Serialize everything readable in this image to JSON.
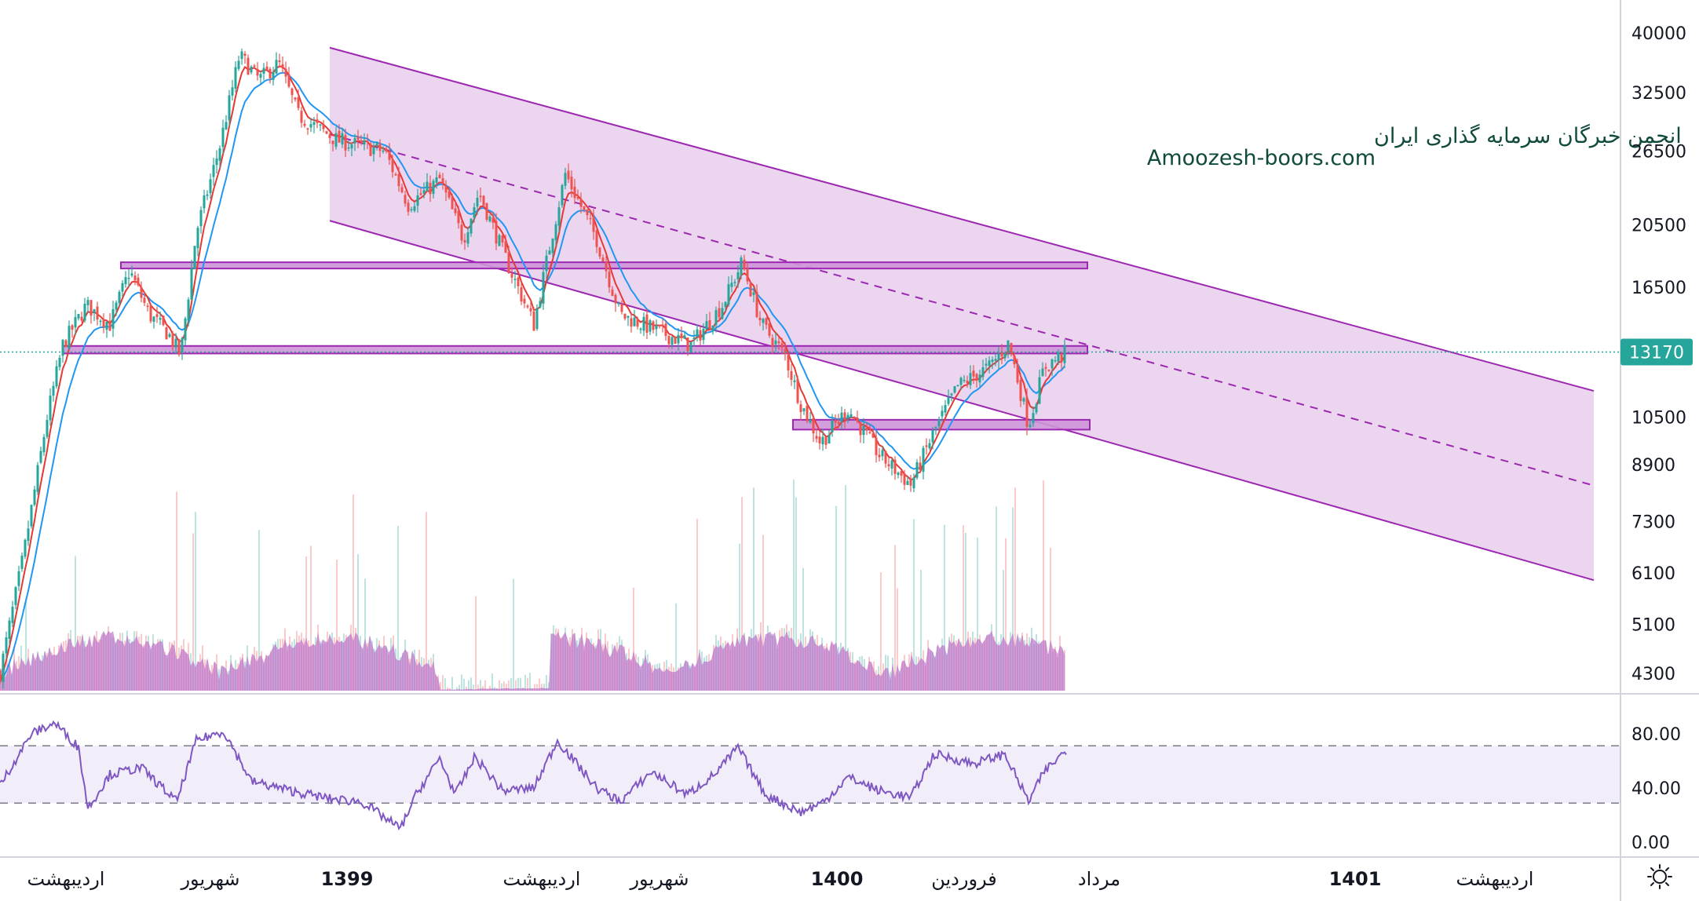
{
  "watermark": {
    "line1": "انجمن خبرگان سرمایه گذاری ایران",
    "line2": "Amoozesh-boors.com"
  },
  "price_badge": "13170",
  "colors": {
    "up": "#26a69a",
    "down": "#ef5350",
    "channel": "#9c27b0",
    "channel_fill": "#e1bee7",
    "ema_fast": "#e53935",
    "ema_slow": "#2196f3",
    "rsi": "#7e57c2",
    "volume_area": "#ba68c8",
    "badge": "#26a69a"
  },
  "settings_icon": "sun-gear-icon",
  "chart_data": [
    {
      "type": "candlestick",
      "scale": "log",
      "y_ticks": [
        "40000",
        "32500",
        "26500",
        "20500",
        "16500",
        "13170",
        "10500",
        "8900",
        "7300",
        "6100",
        "5100",
        "4300"
      ],
      "y_tick_values": [
        40000,
        32500,
        26500,
        20500,
        16500,
        13170,
        10500,
        8900,
        7300,
        6100,
        5100,
        4300
      ],
      "x_labels": [
        "اردیبهشت",
        "شهریور",
        "1399",
        "اردیبهشت",
        "شهریور",
        "1400",
        "فروردین",
        "مرداد",
        "1401",
        "اردیبهشت"
      ],
      "bold_labels": [
        "1399",
        "1400",
        "1401"
      ],
      "last_price": 13170,
      "approx_path": [
        {
          "t": 0,
          "p": 4300
        },
        {
          "t": 30,
          "p": 6500
        },
        {
          "t": 60,
          "p": 10500
        },
        {
          "t": 80,
          "p": 13500
        },
        {
          "t": 110,
          "p": 15500
        },
        {
          "t": 140,
          "p": 14500
        },
        {
          "t": 165,
          "p": 17500
        },
        {
          "t": 190,
          "p": 15000
        },
        {
          "t": 215,
          "p": 14000
        },
        {
          "t": 230,
          "p": 13000
        },
        {
          "t": 250,
          "p": 20000
        },
        {
          "t": 280,
          "p": 27000
        },
        {
          "t": 305,
          "p": 37000
        },
        {
          "t": 330,
          "p": 34000
        },
        {
          "t": 355,
          "p": 36000
        },
        {
          "t": 380,
          "p": 30000
        },
        {
          "t": 430,
          "p": 27500
        },
        {
          "t": 490,
          "p": 26500
        },
        {
          "t": 520,
          "p": 22000
        },
        {
          "t": 560,
          "p": 24000
        },
        {
          "t": 590,
          "p": 19500
        },
        {
          "t": 610,
          "p": 23000
        },
        {
          "t": 650,
          "p": 17500
        },
        {
          "t": 680,
          "p": 14500
        },
        {
          "t": 700,
          "p": 19000
        },
        {
          "t": 720,
          "p": 24500
        },
        {
          "t": 760,
          "p": 19500
        },
        {
          "t": 790,
          "p": 15000
        },
        {
          "t": 830,
          "p": 14300
        },
        {
          "t": 880,
          "p": 13500
        },
        {
          "t": 920,
          "p": 15500
        },
        {
          "t": 945,
          "p": 18000
        },
        {
          "t": 970,
          "p": 14500
        },
        {
          "t": 1000,
          "p": 13000
        },
        {
          "t": 1020,
          "p": 11000
        },
        {
          "t": 1045,
          "p": 9600
        },
        {
          "t": 1080,
          "p": 10800
        },
        {
          "t": 1120,
          "p": 9200
        },
        {
          "t": 1160,
          "p": 8300
        },
        {
          "t": 1190,
          "p": 10000
        },
        {
          "t": 1220,
          "p": 11700
        },
        {
          "t": 1260,
          "p": 12500
        },
        {
          "t": 1285,
          "p": 13600
        },
        {
          "t": 1310,
          "p": 10200
        },
        {
          "t": 1330,
          "p": 12500
        },
        {
          "t": 1358,
          "p": 13170
        }
      ],
      "channel": {
        "upper_start": 38000,
        "upper_end": 11500,
        "lower_start": 20800,
        "lower_end": 5950
      },
      "support_zones": [
        {
          "from": 18000,
          "to": 17800,
          "start_t": 112,
          "end_t": 1385
        },
        {
          "from": 13450,
          "to": 13100,
          "start_t": 80,
          "end_t": 1385
        },
        {
          "from": 10400,
          "to": 10050,
          "start_t": 1010,
          "end_t": 1388
        }
      ]
    },
    {
      "type": "line",
      "name": "RSI",
      "y_ticks": [
        "80.00",
        "40.00",
        "0.00"
      ],
      "y_tick_values": [
        80,
        40,
        0
      ],
      "band": [
        30,
        70
      ],
      "approx_values": [
        {
          "t": 0,
          "p": 42
        },
        {
          "t": 40,
          "p": 80
        },
        {
          "t": 70,
          "p": 88
        },
        {
          "t": 100,
          "p": 70
        },
        {
          "t": 112,
          "p": 25
        },
        {
          "t": 140,
          "p": 50
        },
        {
          "t": 180,
          "p": 55
        },
        {
          "t": 225,
          "p": 30
        },
        {
          "t": 250,
          "p": 75
        },
        {
          "t": 285,
          "p": 82
        },
        {
          "t": 320,
          "p": 45
        },
        {
          "t": 370,
          "p": 38
        },
        {
          "t": 420,
          "p": 32
        },
        {
          "t": 460,
          "p": 30
        },
        {
          "t": 510,
          "p": 10
        },
        {
          "t": 530,
          "p": 35
        },
        {
          "t": 560,
          "p": 62
        },
        {
          "t": 580,
          "p": 35
        },
        {
          "t": 605,
          "p": 63
        },
        {
          "t": 640,
          "p": 38
        },
        {
          "t": 680,
          "p": 40
        },
        {
          "t": 710,
          "p": 75
        },
        {
          "t": 760,
          "p": 40
        },
        {
          "t": 790,
          "p": 30
        },
        {
          "t": 830,
          "p": 52
        },
        {
          "t": 875,
          "p": 35
        },
        {
          "t": 910,
          "p": 50
        },
        {
          "t": 940,
          "p": 70
        },
        {
          "t": 975,
          "p": 35
        },
        {
          "t": 1020,
          "p": 22
        },
        {
          "t": 1050,
          "p": 30
        },
        {
          "t": 1080,
          "p": 48
        },
        {
          "t": 1120,
          "p": 38
        },
        {
          "t": 1160,
          "p": 33
        },
        {
          "t": 1190,
          "p": 65
        },
        {
          "t": 1240,
          "p": 58
        },
        {
          "t": 1280,
          "p": 65
        },
        {
          "t": 1310,
          "p": 30
        },
        {
          "t": 1330,
          "p": 52
        },
        {
          "t": 1358,
          "p": 68
        }
      ]
    }
  ]
}
